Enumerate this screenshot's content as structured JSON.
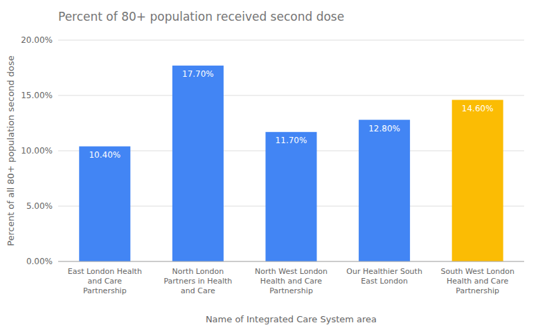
{
  "chart_data": {
    "type": "bar",
    "title": "Percent of 80+ population received second dose",
    "x_label": "Name of Integrated Care System area",
    "y_label": "Percent of all 80+ population second dose",
    "categories": [
      "East London Health\nand Care\nPartnership",
      "North London\nPartners in Health\nand Care",
      "North West London\nHealth and Care\nPartnership",
      "Our Healthier South\nEast London",
      "South West London\nHealth and Care\nPartnership"
    ],
    "values": [
      10.4,
      17.7,
      11.7,
      12.8,
      14.6
    ],
    "value_labels": [
      "10.40%",
      "17.70%",
      "11.70%",
      "12.80%",
      "14.60%"
    ],
    "colors": [
      "#4285F4",
      "#4285F4",
      "#4285F4",
      "#4285F4",
      "#FBBC04"
    ],
    "ylim": [
      0,
      20
    ],
    "yticks": [
      {
        "value": 0,
        "label": "0.00%"
      },
      {
        "value": 5,
        "label": "5.00%"
      },
      {
        "value": 10,
        "label": "10.00%"
      },
      {
        "value": 15,
        "label": "15.00%"
      },
      {
        "value": 20,
        "label": "20.00%"
      }
    ],
    "grid": true,
    "data_labels": true
  }
}
